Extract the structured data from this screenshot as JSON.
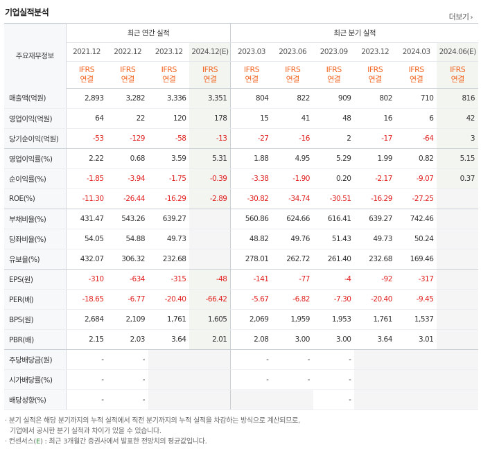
{
  "header": {
    "title": "기업실적분석",
    "more_label": "더보기",
    "more_chevron": "›"
  },
  "table": {
    "label_header": "주요재무정보",
    "annual_group": "최근 연간 실적",
    "quarter_group": "최근 분기 실적",
    "annual_periods": [
      "2021.12",
      "2022.12",
      "2023.12",
      "2024.12(E)"
    ],
    "quarter_periods": [
      "2023.03",
      "2023.06",
      "2023.09",
      "2023.12",
      "2024.03",
      "2024.06(E)"
    ],
    "ifrs_top": "IFRS",
    "ifrs_bottom": "연결",
    "rows": [
      {
        "label": "매출액(억원)",
        "values": [
          "2,893",
          "3,282",
          "3,336",
          "3,351",
          "804",
          "822",
          "909",
          "802",
          "710",
          "816"
        ]
      },
      {
        "label": "영업이익(억원)",
        "values": [
          "64",
          "22",
          "120",
          "178",
          "15",
          "41",
          "48",
          "16",
          "6",
          "42"
        ]
      },
      {
        "label": "당기순이익(억원)",
        "values": [
          "-53",
          "-129",
          "-58",
          "-13",
          "-27",
          "-16",
          "2",
          "-17",
          "-64",
          "3"
        ]
      },
      {
        "label": "영업이익률(%)",
        "values": [
          "2.22",
          "0.68",
          "3.59",
          "5.31",
          "1.88",
          "4.95",
          "5.29",
          "1.99",
          "0.82",
          "5.15"
        ]
      },
      {
        "label": "순이익률(%)",
        "values": [
          "-1.85",
          "-3.94",
          "-1.75",
          "-0.39",
          "-3.38",
          "-1.90",
          "0.20",
          "-2.17",
          "-9.07",
          "0.37"
        ]
      },
      {
        "label": "ROE(%)",
        "values": [
          "-11.30",
          "-26.44",
          "-16.29",
          "-2.89",
          "-30.82",
          "-34.74",
          "-30.51",
          "-16.29",
          "-27.25",
          ""
        ]
      },
      {
        "label": "부채비율(%)",
        "values": [
          "431.47",
          "543.26",
          "639.27",
          "",
          "560.86",
          "624.66",
          "616.41",
          "639.27",
          "742.46",
          ""
        ]
      },
      {
        "label": "당좌비율(%)",
        "values": [
          "54.05",
          "54.88",
          "49.73",
          "",
          "48.82",
          "49.76",
          "51.43",
          "49.73",
          "50.24",
          ""
        ]
      },
      {
        "label": "유보율(%)",
        "values": [
          "432.07",
          "306.32",
          "232.68",
          "",
          "278.01",
          "262.72",
          "261.40",
          "232.68",
          "169.46",
          ""
        ]
      },
      {
        "label": "EPS(원)",
        "values": [
          "-310",
          "-634",
          "-315",
          "-48",
          "-141",
          "-77",
          "-4",
          "-92",
          "-317",
          ""
        ]
      },
      {
        "label": "PER(배)",
        "values": [
          "-18.65",
          "-6.77",
          "-20.40",
          "-66.42",
          "-5.67",
          "-6.82",
          "-7.30",
          "-20.40",
          "-9.45",
          ""
        ]
      },
      {
        "label": "BPS(원)",
        "values": [
          "2,684",
          "2,109",
          "1,761",
          "1,605",
          "2,069",
          "1,959",
          "1,953",
          "1,761",
          "1,537",
          ""
        ]
      },
      {
        "label": "PBR(배)",
        "values": [
          "2.15",
          "2.03",
          "3.64",
          "2.01",
          "2.08",
          "3.00",
          "3.00",
          "3.64",
          "3.01",
          ""
        ]
      },
      {
        "label": "주당배당금(원)",
        "values": [
          "-",
          "-",
          "",
          "",
          "-",
          "-",
          "-",
          "",
          "",
          ""
        ]
      },
      {
        "label": "시가배당률(%)",
        "values": [
          "-",
          "-",
          "",
          "",
          "-",
          "-",
          "-",
          "",
          "",
          ""
        ]
      },
      {
        "label": "배당성향(%)",
        "values": [
          "-",
          "-",
          "",
          "",
          "",
          "",
          "-",
          "",
          "",
          ""
        ]
      }
    ],
    "group_end_rows": [
      2,
      5,
      8,
      12
    ]
  },
  "notes": {
    "line1": "· 분기 실적은 해당 분기까지의 누적 실적에서 직전 분기까지의 누적 실적을 차감하는 방식으로 계산되므로,",
    "line2": "기업에서 공시한 분기 실적과 차이가 있을 수 있습니다.",
    "line3_prefix": "· 컨센서스(",
    "line3_e": "E",
    "line3_suffix": ") : 최근 3개월간 증권사에서 발표한 전망치의 평균값입니다."
  },
  "colors": {
    "negative": "#e02020",
    "ifrs": "#f26522",
    "estimate_bg": "#f3f5f0",
    "empty_bg": "#f4f5f4"
  }
}
